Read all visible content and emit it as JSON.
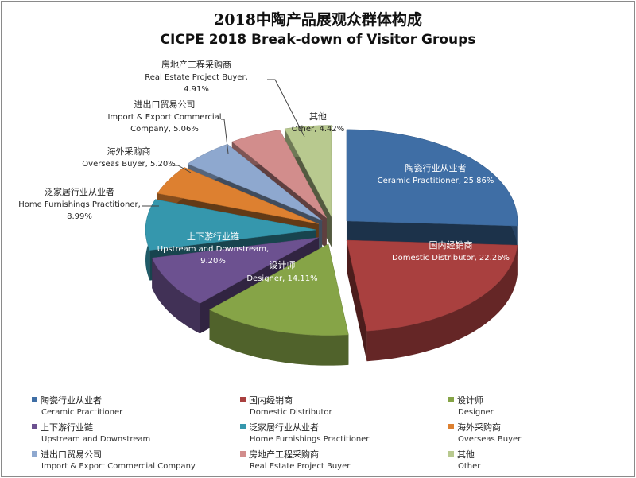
{
  "chart_data": {
    "type": "pie",
    "title": "2018中陶产品展观众群体构成",
    "subtitle": "CICPE 2018 Break-down of Visitor Groups",
    "style": "3d-exploded",
    "legend_placement": "bottom",
    "slices": [
      {
        "cn": "陶瓷行业从业者",
        "en": "Ceramic Practitioner",
        "value": 25.86,
        "label": "Ceramic Practitioner, 25.86%",
        "color": "#3f6ea5"
      },
      {
        "cn": "国内经销商",
        "en": "Domestic Distributor",
        "value": 22.26,
        "label": "Domestic Distributor, 22.26%",
        "color": "#a9403f"
      },
      {
        "cn": "设计师",
        "en": "Designer",
        "value": 14.11,
        "label": "Designer, 14.11%",
        "color": "#86a447"
      },
      {
        "cn": "上下游行业链",
        "en": "Upstream and Downstream",
        "value": 9.2,
        "label1": "Upstream and Downstream,",
        "label2": "9.20%",
        "color": "#6c5190"
      },
      {
        "cn": "泛家居行业从业者",
        "en": "Home Furnishings Practitioner",
        "value": 8.99,
        "label1": "Home  Furnishings Practitioner,",
        "label2": "8.99%",
        "color": "#3597ad"
      },
      {
        "cn": "海外采购商",
        "en": "Overseas Buyer",
        "value": 5.2,
        "label": "Overseas Buyer, 5.20%",
        "color": "#dd8030"
      },
      {
        "cn": "进出口贸易公司",
        "en": "Import & Export Commercial Company",
        "value": 5.06,
        "label1": "Import & Export Commercial",
        "label2": "Company, 5.06%",
        "color": "#8ea8cf"
      },
      {
        "cn": "房地产工程采购商",
        "en": "Real Estate Project Buyer",
        "value": 4.91,
        "label1": "Real Estate Project Buyer,",
        "label2": "4.91%",
        "color": "#d28d8c"
      },
      {
        "cn": "其他",
        "en": "Other",
        "value": 4.42,
        "label": "Other, 4.42%",
        "color": "#b8c98f"
      }
    ]
  }
}
